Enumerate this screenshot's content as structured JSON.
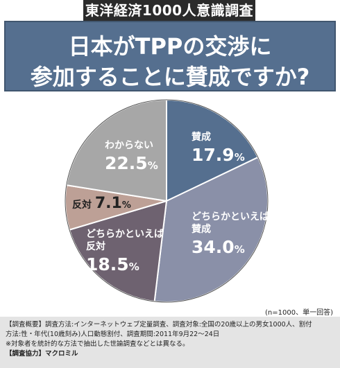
{
  "header": {
    "label": "東洋経済1000人意識調査",
    "question_line1": "日本がTPPの交渉に",
    "question_line2": "参加することに賛成ですか?"
  },
  "chart_data": {
    "type": "pie",
    "start_angle_deg": 0,
    "direction": "clockwise",
    "slices": [
      {
        "label_lines": [
          "賛成"
        ],
        "value": 17.9,
        "display": "17.9",
        "color": "#556f8f",
        "label_color": "#ffffff"
      },
      {
        "label_lines": [
          "どちらかといえば",
          "賛成"
        ],
        "value": 34.0,
        "display": "34.0",
        "color": "#8a90a8",
        "label_color": "#ffffff"
      },
      {
        "label_lines": [
          "どちらかといえば",
          "反対"
        ],
        "value": 18.5,
        "display": "18.5",
        "color": "#6e6270",
        "label_color": "#ffffff"
      },
      {
        "label_lines": [
          "反対"
        ],
        "value": 7.1,
        "display": "7.1",
        "color": "#bda096",
        "label_color": "#222222"
      },
      {
        "label_lines": [
          "わからない"
        ],
        "value": 22.5,
        "display": "22.5",
        "color": "#a7a7a7",
        "label_color": "#ffffff"
      }
    ],
    "unit": "%"
  },
  "notes": {
    "sample": "(n=1000、単一回答)"
  },
  "footer": {
    "line1": "【調査概要】調査方法:インターネットウェブ定量調査、調査対象:全国の20歳以上の男女1000人、割付",
    "line2": "方法:性・年代(10歳刻み)人口動態割付、調査期間:2011年9月22〜24日",
    "line3": "※対象者を統計的な方法で抽出した世論調査などとは異なる。",
    "line4": "【調査協力】マクロミル"
  }
}
